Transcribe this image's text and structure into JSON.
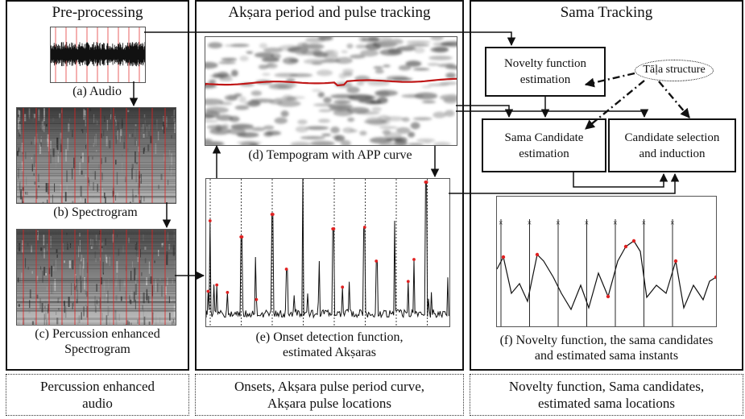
{
  "panels": {
    "preprocessing": {
      "title": "Pre-processing",
      "captions": {
        "audio": "(a) Audio",
        "spectrogram": "(b) Spectrogram",
        "percussion_l1": "(c) Percussion enhanced",
        "percussion_l2": "Spectrogram"
      },
      "footer_l1": "Percussion enhanced",
      "footer_l2": "audio"
    },
    "tracking": {
      "title": "Akṣara period and pulse tracking",
      "captions": {
        "tempogram": "(d) Tempogram with APP curve",
        "onset_l1": "(e) Onset detection function,",
        "onset_l2": "estimated Akṣaras"
      },
      "footer_l1": "Onsets, Akṣara pulse period curve,",
      "footer_l2": "Akṣara pulse locations"
    },
    "sama": {
      "title": "Sama Tracking",
      "boxes": {
        "novelty_l1": "Novelty function",
        "novelty_l2": "estimation",
        "candidate_l1": "Sama Candidate",
        "candidate_l2": "estimation",
        "selection_l1": "Candidate selection",
        "selection_l2": "and induction"
      },
      "tala": "Tāḷa structure",
      "captions": {
        "novelty_l1": "(f) Novelty function, the sama candidates",
        "novelty_l2": "and estimated sama instants"
      },
      "footer_l1": "Novelty function, Sama candidates,",
      "footer_l2": "estimated sama locations"
    }
  },
  "colors": {
    "marker": "#e02020",
    "curve": "#c01818",
    "line": "#111111"
  }
}
